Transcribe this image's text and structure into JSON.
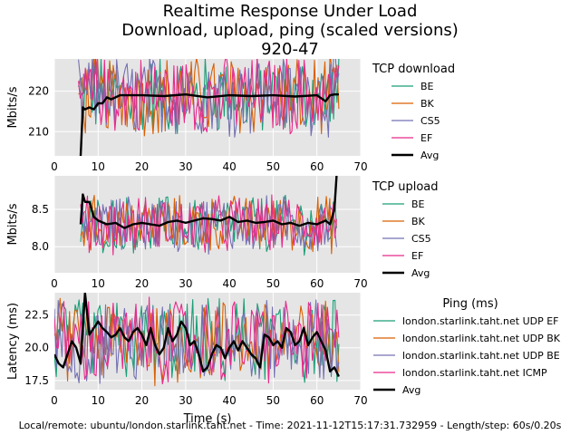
{
  "title_lines": [
    "Realtime Response Under Load",
    "Download, upload, ping (scaled versions)",
    "920-47"
  ],
  "footer": "Local/remote: ubuntu/london.starlink.taht.net - Time: 2021-11-12T15:17:31.732959 - Length/step: 60s/0.20s",
  "xlabel": "Time (s)",
  "colors": {
    "EF_green": "#1b9e77",
    "BK_orange": "#d95f02",
    "BE_purple": "#7570b3",
    "ICMP_pink": "#e7298a",
    "avg": "#000000",
    "panel_bg": "#e5e5e5",
    "grid": "#ffffff"
  },
  "chart_data": [
    {
      "type": "line",
      "ylabel": "Mbits/s",
      "legend_title": "TCP download",
      "xlim": [
        0,
        70
      ],
      "ylim": [
        204,
        228
      ],
      "xticks": [
        0,
        10,
        20,
        30,
        40,
        50,
        60,
        70
      ],
      "yticks": [
        210,
        220
      ],
      "x_range": [
        5.5,
        65
      ],
      "series": [
        {
          "name": "BE",
          "color": "#1b9e77",
          "noisy": true,
          "center": 219,
          "amplitude": 9
        },
        {
          "name": "BK",
          "color": "#d95f02",
          "noisy": true,
          "center": 219,
          "amplitude": 9
        },
        {
          "name": "CS5",
          "color": "#7570b3",
          "noisy": true,
          "center": 219,
          "amplitude": 9
        },
        {
          "name": "EF",
          "color": "#e7298a",
          "noisy": true,
          "center": 219,
          "amplitude": 9
        },
        {
          "name": "Avg",
          "color": "#000000",
          "x": [
            6,
            6.5,
            7,
            8,
            9,
            10,
            11,
            12,
            13,
            14,
            15,
            17,
            20,
            25,
            30,
            35,
            40,
            45,
            50,
            55,
            60,
            62,
            63,
            64,
            65
          ],
          "y": [
            204,
            216,
            215.5,
            216,
            215.5,
            217,
            217,
            218.5,
            218,
            218.5,
            219,
            219,
            219,
            218.8,
            219.2,
            218.5,
            219,
            218.8,
            219,
            218.7,
            219,
            217.5,
            219,
            219.2,
            219.2
          ]
        }
      ]
    },
    {
      "type": "line",
      "ylabel": "Mbits/s",
      "legend_title": "TCP upload",
      "xlim": [
        0,
        70
      ],
      "ylim": [
        7.65,
        8.95
      ],
      "xticks": [
        0,
        10,
        20,
        30,
        40,
        50,
        60,
        70
      ],
      "yticks": [
        8.0,
        8.5
      ],
      "x_range": [
        6,
        64.5
      ],
      "series": [
        {
          "name": "BE",
          "color": "#1b9e77",
          "noisy": true,
          "center": 8.3,
          "amplitude": 0.35
        },
        {
          "name": "BK",
          "color": "#d95f02",
          "noisy": true,
          "center": 8.3,
          "amplitude": 0.35
        },
        {
          "name": "CS5",
          "color": "#7570b3",
          "noisy": true,
          "center": 8.3,
          "amplitude": 0.35
        },
        {
          "name": "EF",
          "color": "#e7298a",
          "noisy": true,
          "center": 8.3,
          "amplitude": 0.35
        },
        {
          "name": "Avg",
          "color": "#000000",
          "x": [
            6,
            6.5,
            7,
            8,
            9,
            10,
            12,
            14,
            16,
            18,
            20,
            22,
            24,
            26,
            28,
            30,
            32,
            34,
            36,
            38,
            40,
            42,
            44,
            46,
            48,
            50,
            52,
            54,
            56,
            58,
            60,
            62,
            63,
            64,
            64.5
          ],
          "y": [
            8.3,
            8.7,
            8.6,
            8.6,
            8.4,
            8.35,
            8.3,
            8.32,
            8.25,
            8.3,
            8.32,
            8.3,
            8.28,
            8.33,
            8.35,
            8.32,
            8.35,
            8.38,
            8.37,
            8.35,
            8.4,
            8.33,
            8.35,
            8.32,
            8.33,
            8.35,
            8.3,
            8.32,
            8.28,
            8.32,
            8.3,
            8.35,
            8.3,
            8.5,
            8.95
          ]
        }
      ]
    },
    {
      "type": "line",
      "ylabel": "Latency (ms)",
      "legend_title": "Ping (ms)",
      "xlim": [
        0,
        70
      ],
      "ylim": [
        16.8,
        24.2
      ],
      "xticks": [
        0,
        10,
        20,
        30,
        40,
        50,
        60,
        70
      ],
      "yticks": [
        17.5,
        20.0,
        22.5
      ],
      "x_range": [
        0,
        65
      ],
      "series": [
        {
          "name": "london.starlink.taht.net UDP EF",
          "color": "#1b9e77",
          "noisy": true,
          "center": 20.5,
          "amplitude": 3
        },
        {
          "name": "london.starlink.taht.net UDP BK",
          "color": "#d95f02",
          "noisy": true,
          "center": 20.5,
          "amplitude": 3
        },
        {
          "name": "london.starlink.taht.net UDP BE",
          "color": "#7570b3",
          "noisy": true,
          "center": 20.5,
          "amplitude": 3
        },
        {
          "name": "london.starlink.taht.net ICMP",
          "color": "#e7298a",
          "noisy": true,
          "center": 20.5,
          "amplitude": 3
        },
        {
          "name": "Avg",
          "color": "#000000",
          "x": [
            0,
            1,
            2,
            3,
            4,
            5,
            6,
            7,
            8,
            9,
            10,
            11,
            12,
            13,
            14,
            15,
            16,
            17,
            18,
            19,
            20,
            21,
            22,
            23,
            24,
            25,
            26,
            27,
            28,
            29,
            30,
            31,
            32,
            33,
            34,
            35,
            36,
            37,
            38,
            39,
            40,
            41,
            42,
            43,
            44,
            45,
            46,
            47,
            48,
            49,
            50,
            51,
            52,
            53,
            54,
            55,
            56,
            57,
            58,
            59,
            60,
            61,
            62,
            63,
            64,
            65
          ],
          "y": [
            19.5,
            18.8,
            18.5,
            19.5,
            20.5,
            20,
            18.8,
            24.2,
            21,
            21.5,
            22,
            21.5,
            21.2,
            20.8,
            21,
            21.5,
            20.8,
            20.5,
            21.2,
            21.5,
            21,
            20.2,
            21.5,
            20.2,
            19.5,
            20,
            21.5,
            20.5,
            21,
            22,
            21.5,
            20.2,
            20.5,
            19.5,
            18.2,
            18.5,
            19.5,
            20.2,
            20,
            19.2,
            20,
            20.5,
            19.8,
            20.5,
            20,
            19.5,
            19.2,
            18.5,
            21,
            20.8,
            20.2,
            20.5,
            20,
            21.5,
            21.2,
            20.2,
            20.5,
            21.5,
            20.2,
            20.8,
            21.2,
            20.5,
            19.8,
            18.2,
            18.5,
            17.8
          ]
        }
      ]
    }
  ]
}
